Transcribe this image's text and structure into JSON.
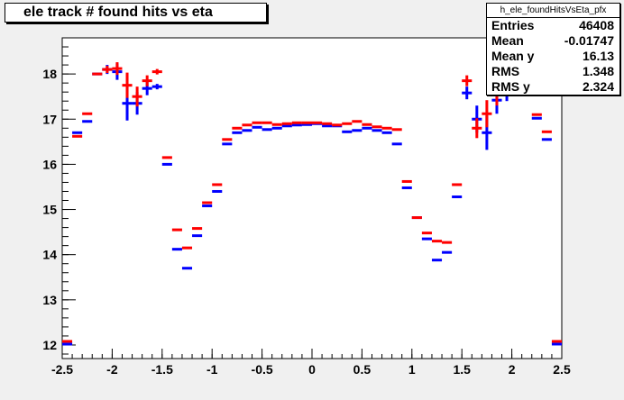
{
  "title": "ele track # found hits vs eta",
  "stats": {
    "name": "h_ele_foundHitsVsEta_pfx",
    "rows": [
      {
        "label": "Entries",
        "value": "46408"
      },
      {
        "label": "Mean",
        "value": "-0.01747"
      },
      {
        "label": "Mean y",
        "value": "16.13"
      },
      {
        "label": "RMS",
        "value": "1.348"
      },
      {
        "label": "RMS y",
        "value": "2.324"
      }
    ]
  },
  "colors": {
    "frame_bg": "#f0f0f0",
    "plot_bg": "#ffffff",
    "red": "#ff0000",
    "blue": "#0000ff"
  },
  "chart_data": {
    "type": "scatter",
    "title": "ele track # found hits vs eta",
    "xlabel": "",
    "ylabel": "",
    "xlim": [
      -2.5,
      2.5
    ],
    "ylim": [
      11.7,
      18.8
    ],
    "x_ticks": [
      "-2.5",
      "-2",
      "-1.5",
      "-1",
      "-0.5",
      "0",
      "0.5",
      "1",
      "1.5",
      "2",
      "2.5"
    ],
    "y_ticks": [
      "12",
      "13",
      "14",
      "15",
      "16",
      "17",
      "18"
    ],
    "bin_half_width": 0.05,
    "series": [
      {
        "color": "red",
        "x": [
          -2.45,
          -2.35,
          -2.25,
          -2.15,
          -2.05,
          -1.95,
          -1.85,
          -1.75,
          -1.65,
          -1.55,
          -1.45,
          -1.35,
          -1.25,
          -1.15,
          -1.05,
          -0.95,
          -0.85,
          -0.75,
          -0.65,
          -0.55,
          -0.45,
          -0.35,
          -0.25,
          -0.15,
          -0.05,
          0.05,
          0.15,
          0.25,
          0.35,
          0.45,
          0.55,
          0.65,
          0.75,
          0.85,
          0.95,
          1.05,
          1.15,
          1.25,
          1.35,
          1.45,
          1.55,
          1.65,
          1.75,
          1.85,
          1.95,
          2.05,
          2.15,
          2.25,
          2.35,
          2.45
        ],
        "y": [
          12.08,
          16.62,
          17.12,
          18.0,
          18.1,
          18.12,
          17.75,
          17.5,
          17.85,
          18.05,
          16.15,
          14.55,
          14.15,
          14.58,
          15.15,
          15.55,
          16.55,
          16.8,
          16.87,
          16.92,
          16.92,
          16.88,
          16.9,
          16.92,
          16.92,
          16.92,
          16.9,
          16.87,
          16.9,
          16.95,
          16.88,
          16.83,
          16.8,
          16.77,
          15.62,
          14.82,
          14.48,
          14.3,
          14.27,
          15.55,
          17.85,
          16.8,
          17.12,
          17.55,
          17.75,
          17.9,
          18.05,
          17.1,
          16.72,
          12.08
        ],
        "err": [
          0.0,
          0.0,
          0.0,
          0.0,
          0.08,
          0.14,
          0.28,
          0.22,
          0.12,
          0.06,
          0.0,
          0.0,
          0.0,
          0.0,
          0.0,
          0.0,
          0.0,
          0.0,
          0.0,
          0.0,
          0.0,
          0.0,
          0.0,
          0.0,
          0.0,
          0.0,
          0.0,
          0.0,
          0.0,
          0.0,
          0.0,
          0.0,
          0.0,
          0.0,
          0.0,
          0.0,
          0.0,
          0.0,
          0.0,
          0.0,
          0.12,
          0.22,
          0.3,
          0.25,
          0.18,
          0.08,
          0.0,
          0.0,
          0.0,
          0.0
        ]
      },
      {
        "color": "blue",
        "x": [
          -2.45,
          -2.35,
          -2.25,
          -2.15,
          -2.05,
          -1.95,
          -1.85,
          -1.75,
          -1.65,
          -1.55,
          -1.45,
          -1.35,
          -1.25,
          -1.15,
          -1.05,
          -0.95,
          -0.85,
          -0.75,
          -0.65,
          -0.55,
          -0.45,
          -0.35,
          -0.25,
          -0.15,
          -0.05,
          0.05,
          0.15,
          0.25,
          0.35,
          0.45,
          0.55,
          0.65,
          0.75,
          0.85,
          0.95,
          1.05,
          1.15,
          1.25,
          1.35,
          1.45,
          1.55,
          1.65,
          1.75,
          1.85,
          1.95,
          2.05,
          2.15,
          2.25,
          2.35,
          2.45
        ],
        "y": [
          12.02,
          16.7,
          16.95,
          18.0,
          18.1,
          18.05,
          17.35,
          17.35,
          17.68,
          17.72,
          16.0,
          14.12,
          13.7,
          14.42,
          15.08,
          15.4,
          16.45,
          16.7,
          16.75,
          16.82,
          16.77,
          16.8,
          16.85,
          16.87,
          16.88,
          16.9,
          16.85,
          16.85,
          16.72,
          16.75,
          16.8,
          16.75,
          16.7,
          16.45,
          15.48,
          14.82,
          14.35,
          13.88,
          14.05,
          15.28,
          17.58,
          17.0,
          16.7,
          17.42,
          17.6,
          17.75,
          17.92,
          17.02,
          16.55,
          12.02
        ],
        "err": [
          0.0,
          0.0,
          0.0,
          0.0,
          0.1,
          0.18,
          0.38,
          0.25,
          0.15,
          0.06,
          0.0,
          0.0,
          0.0,
          0.0,
          0.0,
          0.0,
          0.0,
          0.0,
          0.0,
          0.0,
          0.0,
          0.0,
          0.0,
          0.0,
          0.0,
          0.0,
          0.0,
          0.0,
          0.0,
          0.0,
          0.0,
          0.0,
          0.0,
          0.0,
          0.0,
          0.0,
          0.0,
          0.0,
          0.0,
          0.0,
          0.14,
          0.3,
          0.38,
          0.3,
          0.2,
          0.1,
          0.0,
          0.0,
          0.0,
          0.0
        ]
      }
    ]
  }
}
